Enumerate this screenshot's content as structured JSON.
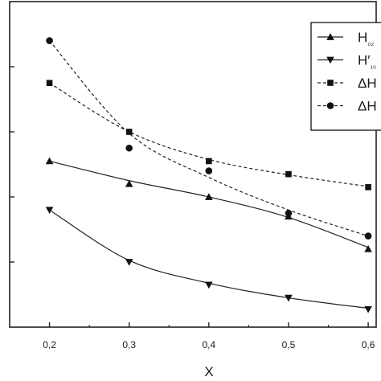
{
  "chart_data": {
    "type": "line",
    "xlabel": "X",
    "ylabel": "",
    "x": [
      0.2,
      0.3,
      0.4,
      0.5,
      0.6
    ],
    "x_tick_labels": [
      "0,2",
      "0,3",
      "0,4",
      "0,5",
      "0,6"
    ],
    "xlim": [
      0.15,
      0.61
    ],
    "ylim": [
      0,
      1
    ],
    "y_ticks": [
      0.2,
      0.4,
      0.6,
      0.8
    ],
    "grid": false,
    "legend_position": "top-right",
    "series": [
      {
        "name": "H₀₂",
        "label": "H",
        "label_sub": "₀₂",
        "marker": "triangle-up",
        "dash": "solid",
        "values": [
          0.51,
          0.44,
          0.4,
          0.34,
          0.24
        ],
        "fit": [
          0.51,
          0.45,
          0.4,
          0.337,
          0.245
        ]
      },
      {
        "name": "H′₁₀",
        "label": "H′",
        "label_sub": "₁₀",
        "marker": "triangle-down",
        "dash": "solid",
        "values": [
          0.36,
          0.2,
          0.13,
          0.09,
          0.055
        ],
        "fit": [
          0.36,
          0.205,
          0.135,
          0.09,
          0.058
        ]
      },
      {
        "name": "ΔH",
        "label": "ΔH",
        "label_sub": "",
        "marker": "square",
        "dash": "dashed",
        "values": [
          0.75,
          0.6,
          0.51,
          0.47,
          0.43
        ],
        "fit": [
          0.75,
          0.6,
          0.515,
          0.468,
          0.432
        ]
      },
      {
        "name": "ΔH",
        "label": "ΔH",
        "label_sub": "",
        "marker": "circle",
        "dash": "dashed",
        "values": [
          0.88,
          0.55,
          0.48,
          0.35,
          0.28
        ],
        "fit": [
          0.88,
          0.595,
          0.46,
          0.36,
          0.28
        ]
      }
    ]
  }
}
